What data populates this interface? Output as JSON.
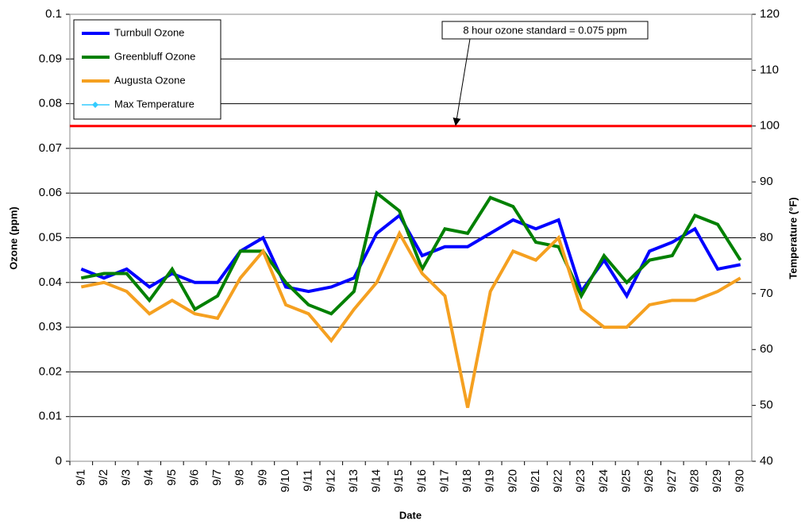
{
  "chart_data": {
    "type": "line",
    "ylabel": "Ozone (ppm)",
    "y2label": "Temperature (°F)",
    "xlabel": "Date",
    "categories": [
      "9/1",
      "9/2",
      "9/3",
      "9/4",
      "9/5",
      "9/6",
      "9/7",
      "9/8",
      "9/9",
      "9/10",
      "9/11",
      "9/12",
      "9/13",
      "9/14",
      "9/15",
      "9/16",
      "9/17",
      "9/18",
      "9/19",
      "9/20",
      "9/21",
      "9/22",
      "9/23",
      "9/24",
      "9/25",
      "9/26",
      "9/27",
      "9/28",
      "9/29",
      "9/30"
    ],
    "series": [
      {
        "name": "Turnbull Ozone",
        "color": "#0000ff",
        "values": [
          0.043,
          0.041,
          0.043,
          0.039,
          0.042,
          0.04,
          0.04,
          0.047,
          0.05,
          0.039,
          0.038,
          0.039,
          0.041,
          0.051,
          0.055,
          0.046,
          0.048,
          0.048,
          0.051,
          0.054,
          0.052,
          0.054,
          0.038,
          0.045,
          0.037,
          0.047,
          0.049,
          0.052,
          0.043,
          0.044
        ]
      },
      {
        "name": "Greenbluff Ozone",
        "color": "#008000",
        "values": [
          0.041,
          0.042,
          0.042,
          0.036,
          0.043,
          0.034,
          0.037,
          0.047,
          0.047,
          0.04,
          0.035,
          0.033,
          0.038,
          0.06,
          0.056,
          0.043,
          0.052,
          0.051,
          0.059,
          0.057,
          0.049,
          0.048,
          0.037,
          0.046,
          0.04,
          0.045,
          0.046,
          0.055,
          0.053,
          0.045
        ]
      },
      {
        "name": "Augusta Ozone",
        "color": "#f5a020",
        "values": [
          0.039,
          0.04,
          0.038,
          0.033,
          0.036,
          0.033,
          0.032,
          0.041,
          0.047,
          0.035,
          0.033,
          0.027,
          0.034,
          0.04,
          0.051,
          0.042,
          0.037,
          0.012,
          0.038,
          0.047,
          0.045,
          0.05,
          0.034,
          0.03,
          0.03,
          0.035,
          0.036,
          0.036,
          0.038,
          0.041
        ]
      },
      {
        "name": "Max Temperature",
        "color": "#33ccff",
        "axis": "y2",
        "values": [
          null,
          null,
          null,
          null,
          null,
          null,
          null,
          null,
          null,
          null,
          null,
          null,
          null,
          null,
          null,
          null,
          null,
          null,
          null,
          null,
          null,
          null,
          null,
          null,
          null,
          null,
          null,
          null,
          null,
          null
        ]
      }
    ],
    "ylim": [
      0,
      0.1
    ],
    "yticks": [
      0,
      0.01,
      0.02,
      0.03,
      0.04,
      0.05,
      0.06,
      0.07,
      0.08,
      0.09,
      0.1
    ],
    "y2lim": [
      40,
      120
    ],
    "y2ticks": [
      40,
      50,
      60,
      70,
      80,
      90,
      100,
      110,
      120
    ],
    "grid": true,
    "reference_line": {
      "value": 0.075,
      "color": "#ff0000"
    },
    "annotation": "8 hour ozone standard = 0.075 ppm",
    "legend": "upper left"
  }
}
